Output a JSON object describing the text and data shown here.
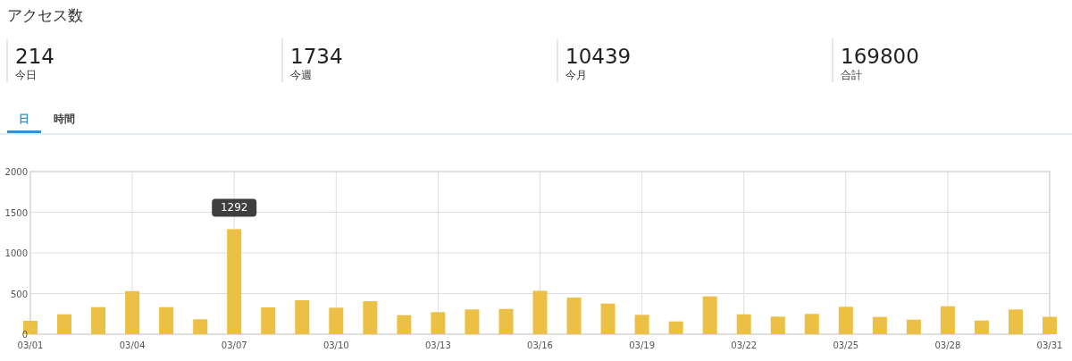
{
  "chart_data": [
    {
      "type": "other",
      "title": "アクセス数",
      "annotations": [
        "214",
        "今日",
        "1734",
        "今週",
        "10439",
        "今月",
        "169800",
        "合計",
        "日",
        "時間"
      ]
    },
    {
      "type": "bar",
      "categories": [
        "03/01",
        null,
        null,
        "03/04",
        null,
        null,
        "03/07",
        null,
        null,
        "03/10",
        null,
        null,
        "03/13",
        null,
        null,
        "03/16",
        null,
        null,
        "03/19",
        null,
        null,
        "03/22",
        null,
        null,
        "03/25",
        null,
        null,
        "03/28",
        null,
        null,
        "03/31"
      ],
      "values": [
        165,
        245,
        333,
        530,
        333,
        183,
        1292,
        330,
        417,
        326,
        406,
        234,
        271,
        304,
        311,
        534,
        450,
        377,
        238,
        157,
        465,
        245,
        216,
        249,
        337,
        212,
        179,
        344,
        168,
        304,
        214
      ],
      "color": "#ebc045",
      "ylim": [
        0,
        2000
      ],
      "yticks": [
        0,
        500,
        1000,
        1500,
        2000
      ],
      "grid": true,
      "annotations": [
        {
          "text": "1292",
          "x": "03/07",
          "y": 1292
        }
      ]
    }
  ]
}
